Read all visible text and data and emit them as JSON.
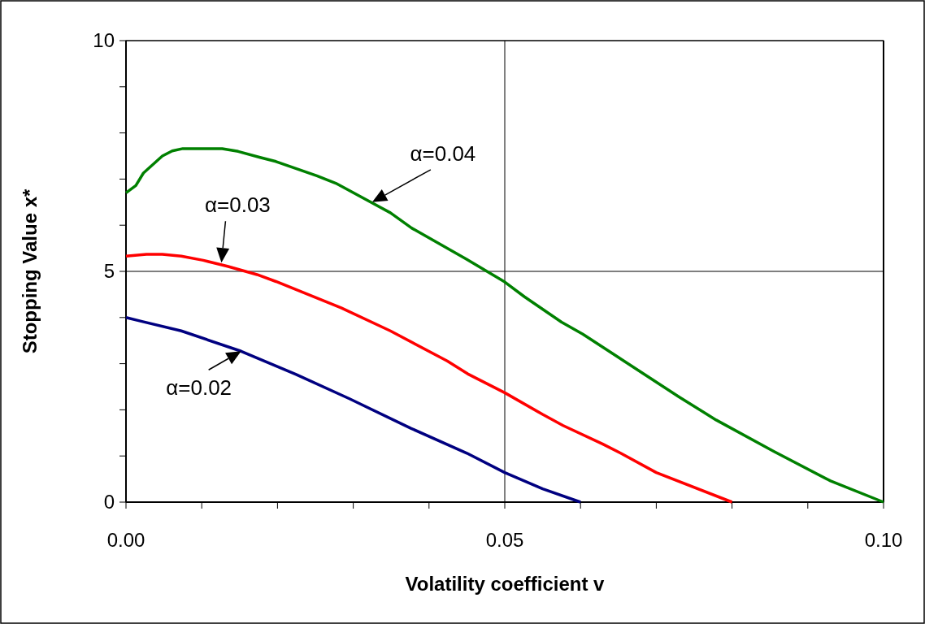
{
  "chart_data": {
    "type": "line",
    "xlabel": "Volatility coefficient v",
    "ylabel": "Stopping Value x*",
    "xlim": [
      0,
      0.1
    ],
    "ylim": [
      0,
      10
    ],
    "xticks": [
      {
        "value": 0,
        "label": "0.00"
      },
      {
        "value": 0.01,
        "label": null
      },
      {
        "value": 0.02,
        "label": null
      },
      {
        "value": 0.03,
        "label": null
      },
      {
        "value": 0.04,
        "label": null
      },
      {
        "value": 0.05,
        "label": "0.05"
      },
      {
        "value": 0.06,
        "label": null
      },
      {
        "value": 0.07,
        "label": null
      },
      {
        "value": 0.08,
        "label": null
      },
      {
        "value": 0.09,
        "label": null
      },
      {
        "value": 0.1,
        "label": "0.10"
      }
    ],
    "yticks": [
      0,
      {
        "value": 1,
        "label": null
      },
      {
        "value": 2,
        "label": null
      },
      {
        "value": 3,
        "label": null
      },
      {
        "value": 4,
        "label": null
      },
      5,
      {
        "value": 6,
        "label": null
      },
      {
        "value": 7,
        "label": null
      },
      {
        "value": 8,
        "label": null
      },
      {
        "value": 9,
        "label": null
      },
      10
    ],
    "grid": true,
    "line_style": "solid",
    "series": [
      {
        "color": "#008000",
        "x": [
          0,
          0.0013,
          0.0023,
          0.0048,
          0.0061,
          0.0075,
          0.0127,
          0.0148,
          0.0177,
          0.0198,
          0.0252,
          0.0277,
          0.0349,
          0.0377,
          0.0449,
          0.05,
          0.0526,
          0.0575,
          0.0603,
          0.073,
          0.0779,
          0.0855,
          0.093,
          0.1
        ],
        "values": [
          6.7,
          6.86,
          7.13,
          7.5,
          7.61,
          7.66,
          7.66,
          7.6,
          7.47,
          7.38,
          7.07,
          6.91,
          6.27,
          5.94,
          5.27,
          4.77,
          4.45,
          3.9,
          3.64,
          2.28,
          1.78,
          1.1,
          0.46,
          0
        ]
      },
      {
        "color": "#ff0000",
        "x": [
          0,
          0.0027,
          0.0048,
          0.0073,
          0.0102,
          0.0134,
          0.0173,
          0.0198,
          0.0284,
          0.0349,
          0.0424,
          0.0451,
          0.05,
          0.055,
          0.0577,
          0.0629,
          0.0653,
          0.07,
          0.08
        ],
        "values": [
          5.33,
          5.37,
          5.37,
          5.33,
          5.24,
          5.11,
          4.93,
          4.78,
          4.21,
          3.71,
          3.06,
          2.78,
          2.37,
          1.9,
          1.66,
          1.26,
          1.06,
          0.64,
          0
        ]
      },
      {
        "color": "#000080",
        "x": [
          0,
          0.002,
          0.0073,
          0.0152,
          0.0224,
          0.0295,
          0.0376,
          0.045,
          0.05,
          0.055,
          0.06
        ],
        "values": [
          4.0,
          3.92,
          3.71,
          3.27,
          2.77,
          2.24,
          1.6,
          1.06,
          0.64,
          0.29,
          0
        ]
      }
    ],
    "annotations": [
      {
        "text": "α=0.04",
        "x": 0.0325,
        "y": 6.5
      },
      {
        "text": "α=0.03",
        "x": 0.0126,
        "y": 5.19
      },
      {
        "text": "α=0.02",
        "x": 0.0152,
        "y": 3.27
      }
    ]
  }
}
